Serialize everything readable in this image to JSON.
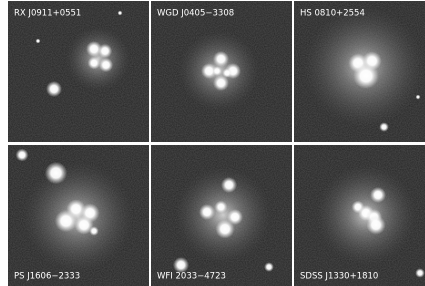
{
  "panels": [
    {
      "label": "RX J0911+0551"
    },
    {
      "label": "WGD J0405−3308"
    },
    {
      "label": "HS 0810+2554"
    },
    {
      "label": "PS J1606−2333"
    },
    {
      "label": "WFI 2033−4723"
    },
    {
      "label": "SDSS J1330+1810"
    }
  ]
}
